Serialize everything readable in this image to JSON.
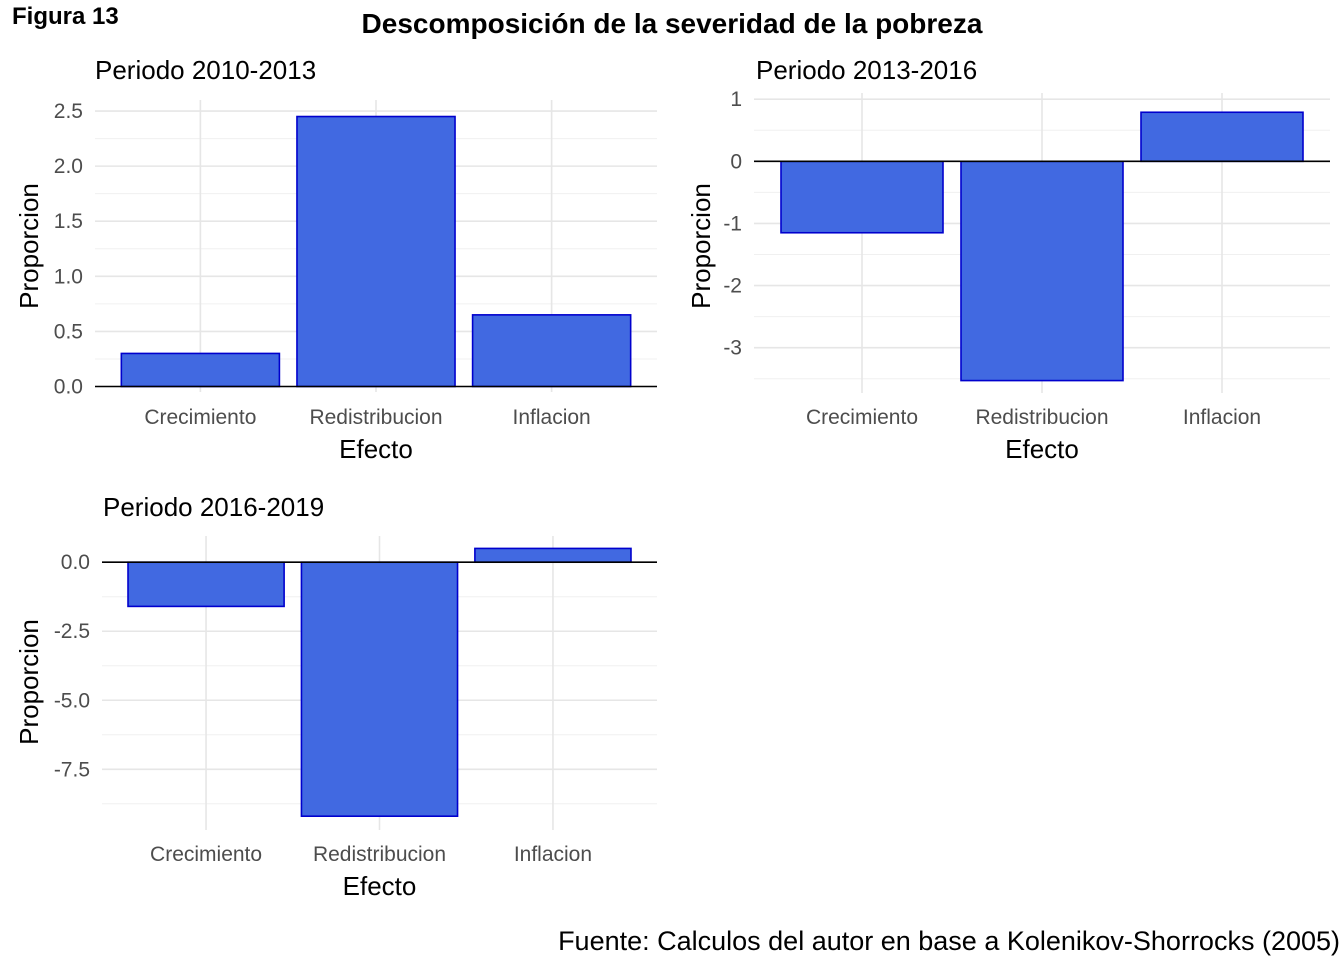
{
  "figure_label": "Figura 13",
  "title": "Descomposición de la severidad de la pobreza",
  "source": "Fuente: Calculos del autor en base a Kolenikov-Shorrocks (2005)",
  "colors": {
    "bar_fill": "#4169E1",
    "bar_stroke": "#0000CD"
  },
  "chart_data": [
    {
      "type": "bar",
      "title": "Periodo 2010-2013",
      "xlabel": "Efecto",
      "ylabel": "Proporcion",
      "categories": [
        "Crecimiento",
        "Redistribucion",
        "Inflacion"
      ],
      "values": [
        0.3,
        2.45,
        0.65
      ],
      "ylim": [
        -0.05,
        2.6
      ],
      "yticks": [
        0,
        0.5,
        1.0,
        1.5,
        2.0,
        2.5
      ],
      "ytick_labels": [
        "0.0",
        "0.5",
        "1.0",
        "1.5",
        "2.0",
        "2.5"
      ],
      "grid": true
    },
    {
      "type": "bar",
      "title": "Periodo 2013-2016",
      "xlabel": "Efecto",
      "ylabel": "Proporcion",
      "categories": [
        "Crecimiento",
        "Redistribucion",
        "Inflacion"
      ],
      "values": [
        -1.15,
        -3.53,
        0.79
      ],
      "ylim": [
        -3.73,
        1.1
      ],
      "yticks": [
        -3,
        -2,
        -1,
        0,
        1
      ],
      "ytick_labels": [
        "-3",
        "-2",
        "-1",
        "0",
        "1"
      ],
      "grid": true
    },
    {
      "type": "bar",
      "title": "Periodo 2016-2019",
      "xlabel": "Efecto",
      "ylabel": "Proporcion",
      "categories": [
        "Crecimiento",
        "Redistribucion",
        "Inflacion"
      ],
      "values": [
        -1.6,
        -9.2,
        0.5
      ],
      "ylim": [
        -9.7,
        0.95
      ],
      "yticks": [
        -7.5,
        -5.0,
        -2.5,
        0.0
      ],
      "ytick_labels": [
        "-7.5",
        "-5.0",
        "-2.5",
        "0.0"
      ],
      "grid": true
    }
  ]
}
